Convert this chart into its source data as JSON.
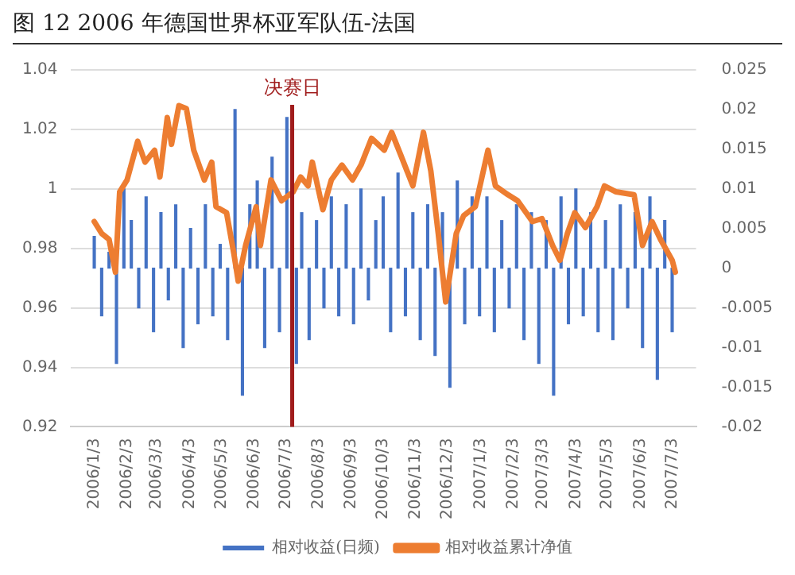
{
  "chart_data": {
    "type": "line",
    "title": "图 12 2006 年德国世界杯亚军队伍-法国",
    "xlim": [
      "2005-12-27",
      "2007-07-10"
    ],
    "xticks": [
      {
        "value": "2006-01-03",
        "label": "2006/1/3"
      },
      {
        "value": "2006-02-03",
        "label": "2006/2/3"
      },
      {
        "value": "2006-03-03",
        "label": "2006/3/3"
      },
      {
        "value": "2006-04-03",
        "label": "2006/4/3"
      },
      {
        "value": "2006-05-03",
        "label": "2006/5/3"
      },
      {
        "value": "2006-06-03",
        "label": "2006/6/3"
      },
      {
        "value": "2006-07-03",
        "label": "2006/7/3"
      },
      {
        "value": "2006-08-03",
        "label": "2006/8/3"
      },
      {
        "value": "2006-09-03",
        "label": "2006/9/3"
      },
      {
        "value": "2006-10-03",
        "label": "2006/10/3"
      },
      {
        "value": "2006-11-03",
        "label": "2006/11/3"
      },
      {
        "value": "2006-12-03",
        "label": "2006/12/3"
      },
      {
        "value": "2007-01-03",
        "label": "2007/1/3"
      },
      {
        "value": "2007-02-03",
        "label": "2007/2/3"
      },
      {
        "value": "2007-03-03",
        "label": "2007/3/3"
      },
      {
        "value": "2007-04-03",
        "label": "2007/4/3"
      },
      {
        "value": "2007-05-03",
        "label": "2007/5/3"
      },
      {
        "value": "2007-06-03",
        "label": "2007/6/3"
      },
      {
        "value": "2007-07-03",
        "label": "2007/7/3"
      }
    ],
    "ylim": [
      0.92,
      1.04
    ],
    "yticks": [
      0.92,
      0.94,
      0.96,
      0.98,
      1,
      1.02,
      1.04
    ],
    "y2lim": [
      -0.02,
      0.025
    ],
    "y2ticks": [
      -0.02,
      -0.015,
      -0.01,
      -0.005,
      0,
      0.005,
      0.01,
      0.015,
      0.02,
      0.025
    ],
    "grid": "y",
    "legend": "bottom",
    "marker": "none",
    "ref_lines": [
      {
        "axis": "x",
        "value": "2006-07-09",
        "label": "决赛日",
        "color": "#a01c1c"
      }
    ],
    "series": [
      {
        "name": "相对收益(日频)",
        "type": "bar",
        "axis": "y2",
        "color": "#4472c4",
        "x": [
          "2006-01-03",
          "2006-01-10",
          "2006-01-17",
          "2006-01-24",
          "2006-01-31",
          "2006-02-07",
          "2006-02-14",
          "2006-02-21",
          "2006-02-28",
          "2006-03-07",
          "2006-03-14",
          "2006-03-21",
          "2006-03-28",
          "2006-04-04",
          "2006-04-11",
          "2006-04-18",
          "2006-04-25",
          "2006-05-02",
          "2006-05-09",
          "2006-05-16",
          "2006-05-23",
          "2006-05-30",
          "2006-06-06",
          "2006-06-13",
          "2006-06-20",
          "2006-06-27",
          "2006-07-04",
          "2006-07-13",
          "2006-07-18",
          "2006-07-25",
          "2006-08-01",
          "2006-08-08",
          "2006-08-15",
          "2006-08-22",
          "2006-08-29",
          "2006-09-05",
          "2006-09-12",
          "2006-09-19",
          "2006-09-26",
          "2006-10-03",
          "2006-10-10",
          "2006-10-17",
          "2006-10-24",
          "2006-10-31",
          "2006-11-07",
          "2006-11-14",
          "2006-11-21",
          "2006-11-28",
          "2006-12-05",
          "2006-12-12",
          "2006-12-19",
          "2006-12-26",
          "2007-01-02",
          "2007-01-09",
          "2007-01-16",
          "2007-01-23",
          "2007-01-30",
          "2007-02-06",
          "2007-02-13",
          "2007-02-20",
          "2007-02-27",
          "2007-03-06",
          "2007-03-13",
          "2007-03-20",
          "2007-03-27",
          "2007-04-03",
          "2007-04-10",
          "2007-04-17",
          "2007-04-24",
          "2007-05-01",
          "2007-05-08",
          "2007-05-15",
          "2007-05-22",
          "2007-05-29",
          "2007-06-05",
          "2007-06-12",
          "2007-06-19",
          "2007-06-26",
          "2007-07-03"
        ],
        "values": [
          0.004,
          -0.006,
          0.002,
          -0.012,
          0.01,
          0.006,
          -0.005,
          0.009,
          -0.008,
          0.007,
          -0.004,
          0.008,
          -0.01,
          0.005,
          -0.007,
          0.008,
          -0.006,
          0.003,
          -0.009,
          0.02,
          -0.016,
          0.008,
          0.011,
          -0.01,
          0.014,
          -0.008,
          0.019,
          -0.012,
          0.007,
          -0.009,
          0.006,
          -0.005,
          0.009,
          -0.006,
          0.008,
          -0.007,
          0.01,
          -0.004,
          0.006,
          0.009,
          -0.008,
          0.012,
          -0.006,
          0.007,
          -0.009,
          0.008,
          -0.011,
          0.007,
          -0.015,
          0.011,
          -0.007,
          0.009,
          -0.006,
          0.009,
          -0.008,
          0.006,
          -0.005,
          0.008,
          -0.009,
          0.007,
          -0.012,
          0.006,
          -0.016,
          0.009,
          -0.007,
          0.01,
          -0.006,
          0.007,
          -0.008,
          0.006,
          -0.009,
          0.008,
          -0.005,
          0.007,
          -0.01,
          0.009,
          -0.014,
          0.006,
          -0.008
        ]
      },
      {
        "name": "相对收益累计净值",
        "color": "#ed7d31",
        "x": [
          "2006-01-03",
          "2006-01-10",
          "2006-01-17",
          "2006-01-23",
          "2006-01-27",
          "2006-02-03",
          "2006-02-13",
          "2006-02-20",
          "2006-03-01",
          "2006-03-06",
          "2006-03-13",
          "2006-03-17",
          "2006-03-24",
          "2006-03-31",
          "2006-04-07",
          "2006-04-17",
          "2006-04-24",
          "2006-04-28",
          "2006-05-08",
          "2006-05-15",
          "2006-05-19",
          "2006-05-26",
          "2006-06-05",
          "2006-06-09",
          "2006-06-19",
          "2006-06-29",
          "2006-07-10",
          "2006-07-17",
          "2006-07-24",
          "2006-07-28",
          "2006-08-07",
          "2006-08-15",
          "2006-08-25",
          "2006-09-04",
          "2006-09-12",
          "2006-09-22",
          "2006-10-04",
          "2006-10-11",
          "2006-10-20",
          "2006-10-31",
          "2006-11-10",
          "2006-11-17",
          "2006-11-24",
          "2006-12-01",
          "2006-12-11",
          "2006-12-18",
          "2006-12-29",
          "2007-01-10",
          "2007-01-17",
          "2007-01-29",
          "2007-02-07",
          "2007-02-21",
          "2007-03-02",
          "2007-03-12",
          "2007-03-19",
          "2007-03-26",
          "2007-04-02",
          "2007-04-12",
          "2007-04-23",
          "2007-04-30",
          "2007-05-11",
          "2007-05-28",
          "2007-06-05",
          "2007-06-14",
          "2007-06-22",
          "2007-07-03",
          "2007-07-06"
        ],
        "values": [
          0.989,
          0.985,
          0.983,
          0.972,
          0.999,
          1.003,
          1.016,
          1.009,
          1.013,
          1.004,
          1.024,
          1.015,
          1.028,
          1.027,
          1.013,
          1.003,
          1.009,
          0.994,
          0.992,
          0.978,
          0.969,
          0.981,
          0.994,
          0.981,
          1.003,
          0.996,
          0.999,
          1.004,
          1.001,
          1.009,
          0.993,
          1.003,
          1.008,
          1.003,
          1.008,
          1.017,
          1.013,
          1.019,
          1.011,
          1.001,
          1.019,
          1.006,
          0.985,
          0.962,
          0.985,
          0.991,
          0.994,
          1.013,
          1.001,
          0.998,
          0.996,
          0.989,
          0.99,
          0.981,
          0.976,
          0.985,
          0.992,
          0.987,
          0.994,
          1.001,
          0.999,
          0.998,
          0.981,
          0.989,
          0.983,
          0.976,
          0.972
        ]
      }
    ]
  }
}
